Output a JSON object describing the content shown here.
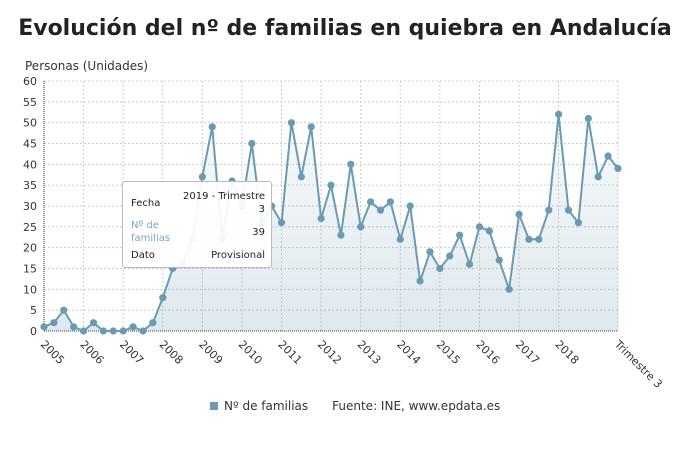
{
  "title": "Evolución del nº de familias en quiebra en Andalucía",
  "chart_data": {
    "type": "area",
    "ylabel": "Personas (Unidades)",
    "ylim": [
      0,
      60
    ],
    "yticks": [
      0,
      5,
      10,
      15,
      20,
      25,
      30,
      35,
      40,
      45,
      50,
      55,
      60
    ],
    "xtick_labels": [
      "2005",
      "2006",
      "2007",
      "2008",
      "2009",
      "2010",
      "2011",
      "2012",
      "2013",
      "2014",
      "2015",
      "2016",
      "2017",
      "2018",
      "Trimestre 3"
    ],
    "grid": true,
    "series": [
      {
        "name": "Nº de familias",
        "color": "#6a9bb3",
        "start": "2005 - Trimestre 1",
        "end": "2019 - Trimestre 3",
        "values": [
          1,
          2,
          5,
          1,
          0,
          2,
          0,
          0,
          0,
          1,
          0,
          2,
          8,
          15,
          16,
          22,
          37,
          49,
          22,
          36,
          30,
          45,
          26,
          30,
          26,
          50,
          37,
          49,
          27,
          35,
          23,
          40,
          25,
          31,
          29,
          31,
          22,
          30,
          12,
          19,
          15,
          18,
          23,
          16,
          25,
          24,
          17,
          10,
          28,
          22,
          22,
          29,
          52,
          29,
          26,
          51,
          37,
          42,
          39
        ]
      }
    ],
    "legend_position": "bottom"
  },
  "tooltip": {
    "fecha_label": "Fecha",
    "fecha_value": "2019 - Trimestre",
    "fecha_value2": "3",
    "series_label": "Nº de",
    "series_label2": "familias",
    "series_value": "39",
    "dato_label": "Dato",
    "dato_value": "Provisional"
  },
  "legend": {
    "series": "Nº de familias",
    "source": "Fuente: INE, www.epdata.es"
  }
}
